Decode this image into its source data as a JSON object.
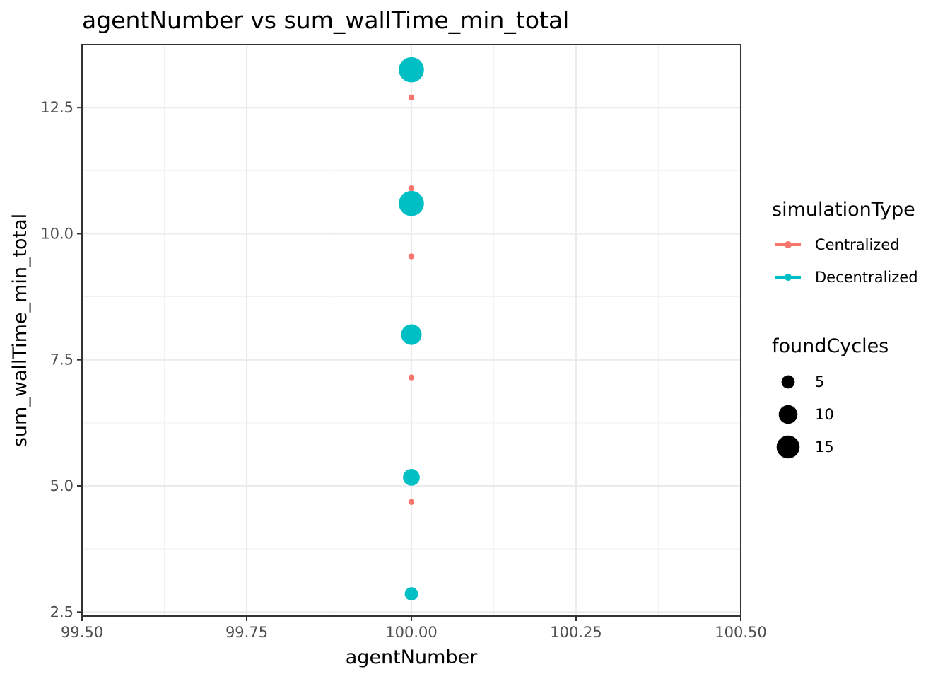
{
  "chart_data": {
    "type": "scatter",
    "title": "agentNumber  vs  sum_wallTime_min_total",
    "xlabel": "agentNumber",
    "ylabel": "sum_wallTime_min_total",
    "xlim": [
      99.5,
      100.5
    ],
    "ylim": [
      2.42,
      13.75
    ],
    "x_ticks": [
      99.5,
      99.75,
      100.0,
      100.25,
      100.5
    ],
    "x_tick_labels": [
      "99.50",
      "99.75",
      "100.00",
      "100.25",
      "100.50"
    ],
    "y_ticks": [
      2.5,
      5.0,
      7.5,
      10.0,
      12.5
    ],
    "y_tick_labels": [
      "2.5",
      "5.0",
      "7.5",
      "10.0",
      "12.5"
    ],
    "grid": true,
    "legend_placement": "right",
    "series": [
      {
        "name": "Centralized",
        "color": "#F8766D",
        "points": [
          {
            "x": 100.0,
            "y": 12.7,
            "size": 1
          },
          {
            "x": 100.0,
            "y": 10.9,
            "size": 1
          },
          {
            "x": 100.0,
            "y": 9.55,
            "size": 1
          },
          {
            "x": 100.0,
            "y": 7.15,
            "size": 1
          },
          {
            "x": 100.0,
            "y": 4.68,
            "size": 1
          }
        ]
      },
      {
        "name": "Decentralized",
        "color": "#00BFC4",
        "points": [
          {
            "x": 100.0,
            "y": 13.25,
            "size": 18
          },
          {
            "x": 100.0,
            "y": 10.6,
            "size": 18
          },
          {
            "x": 100.0,
            "y": 8.0,
            "size": 12
          },
          {
            "x": 100.0,
            "y": 5.17,
            "size": 8
          },
          {
            "x": 100.0,
            "y": 2.86,
            "size": 5
          }
        ]
      }
    ],
    "legend_color": {
      "title": "simulationType",
      "entries": [
        {
          "label": "Centralized",
          "color": "#F8766D"
        },
        {
          "label": "Decentralized",
          "color": "#00BFC4"
        }
      ]
    },
    "legend_size": {
      "title": "foundCycles",
      "entries": [
        {
          "label": "5",
          "value": 5
        },
        {
          "label": "10",
          "value": 10
        },
        {
          "label": "15",
          "value": 15
        }
      ]
    }
  }
}
